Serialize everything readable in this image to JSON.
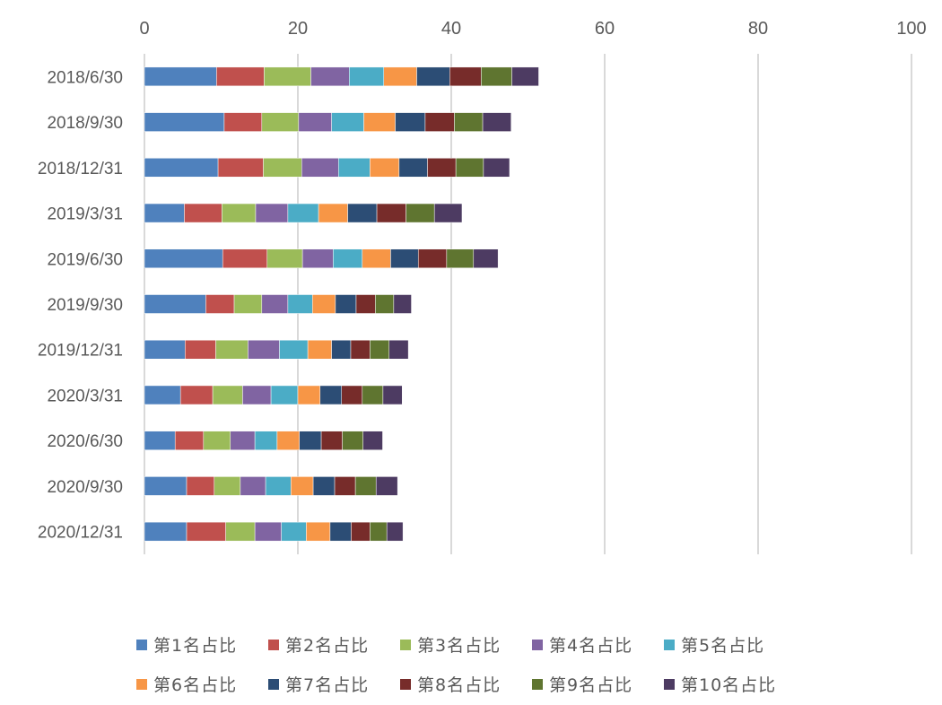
{
  "chart_data": {
    "type": "bar",
    "orientation": "horizontal",
    "stacked": true,
    "title": "",
    "xlabel": "",
    "ylabel": "",
    "xlim": [
      0,
      100
    ],
    "x_ticks": [
      0,
      20,
      40,
      60,
      80,
      100
    ],
    "grid": true,
    "legend_position": "bottom",
    "categories": [
      "2018/6/30",
      "2018/9/30",
      "2018/12/31",
      "2019/3/31",
      "2019/6/30",
      "2019/9/30",
      "2019/12/31",
      "2020/3/31",
      "2020/6/30",
      "2020/9/30",
      "2020/12/31"
    ],
    "series": [
      {
        "name": "第1名占比",
        "color": "#4F81BD",
        "values": [
          9.4,
          10.4,
          9.6,
          5.2,
          10.2,
          8.0,
          5.3,
          4.7,
          4.0,
          5.5,
          5.5
        ]
      },
      {
        "name": "第2名占比",
        "color": "#C0504D",
        "values": [
          6.2,
          4.9,
          5.9,
          4.9,
          5.8,
          3.7,
          4.0,
          4.2,
          3.7,
          3.6,
          5.1
        ]
      },
      {
        "name": "第3名占比",
        "color": "#9BBB59",
        "values": [
          6.1,
          4.8,
          5.0,
          4.4,
          4.6,
          3.6,
          4.2,
          3.9,
          3.5,
          3.4,
          3.8
        ]
      },
      {
        "name": "第4名占比",
        "color": "#8064A2",
        "values": [
          5.0,
          4.3,
          4.8,
          4.2,
          4.0,
          3.4,
          4.1,
          3.7,
          3.2,
          3.3,
          3.45
        ]
      },
      {
        "name": "第5名占比",
        "color": "#4BACC6",
        "values": [
          4.5,
          4.2,
          4.1,
          4.0,
          3.8,
          3.2,
          3.7,
          3.5,
          2.9,
          3.3,
          3.25
        ]
      },
      {
        "name": "第6名占比",
        "color": "#F79646",
        "values": [
          4.3,
          4.1,
          3.8,
          3.8,
          3.7,
          3.0,
          3.1,
          2.9,
          2.9,
          2.9,
          3.1
        ]
      },
      {
        "name": "第7名占比",
        "color": "#2C4D75",
        "values": [
          4.3,
          3.9,
          3.7,
          3.8,
          3.6,
          2.7,
          2.5,
          2.8,
          2.85,
          2.8,
          2.75
        ]
      },
      {
        "name": "第8名占比",
        "color": "#772C2A",
        "values": [
          4.1,
          3.8,
          3.7,
          3.8,
          3.7,
          2.5,
          2.5,
          2.7,
          2.75,
          2.7,
          2.45
        ]
      },
      {
        "name": "第9名占比",
        "color": "#5F7530",
        "values": [
          4.0,
          3.7,
          3.6,
          3.7,
          3.5,
          2.4,
          2.5,
          2.7,
          2.7,
          2.7,
          2.2
        ]
      },
      {
        "name": "第10名占比",
        "color": "#4D3B62",
        "values": [
          3.5,
          3.7,
          3.4,
          3.6,
          3.2,
          2.3,
          2.5,
          2.5,
          2.55,
          2.8,
          2.1
        ]
      }
    ]
  }
}
